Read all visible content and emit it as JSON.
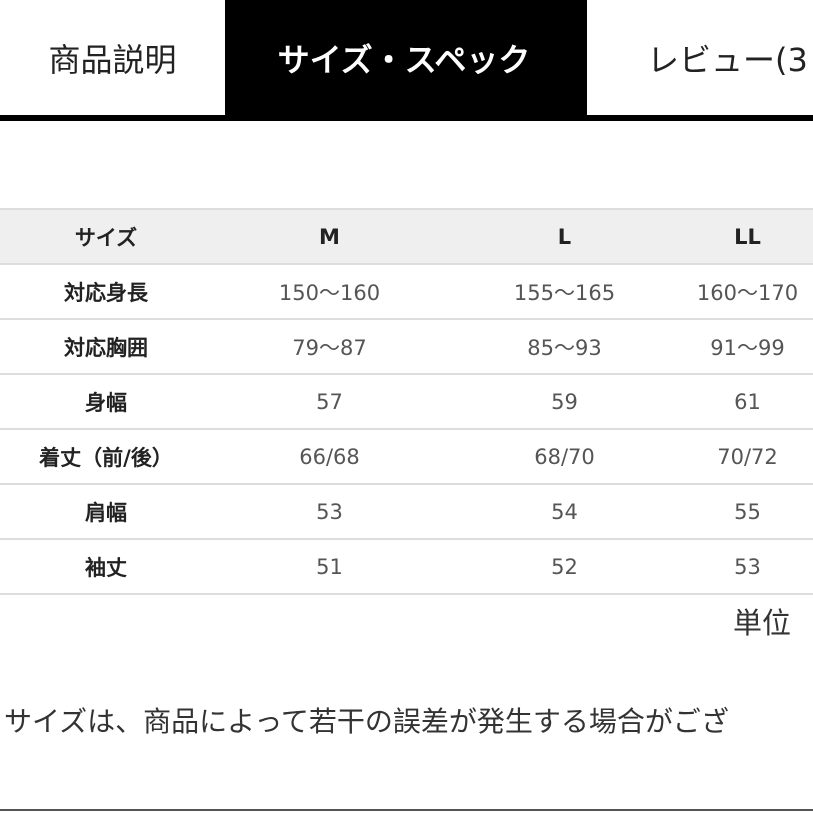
{
  "tabs": [
    {
      "label": "商品説明",
      "active": false
    },
    {
      "label": "サイズ・スペック",
      "active": true
    },
    {
      "label": "レビュー(3",
      "active": false
    }
  ],
  "size_table": {
    "headers": [
      "サイズ",
      "M",
      "L",
      "LL"
    ],
    "rows": [
      [
        "対応身長",
        "150〜160",
        "155〜165",
        "160〜170"
      ],
      [
        "対応胸囲",
        "79〜87",
        "85〜93",
        "91〜99"
      ],
      [
        "身幅",
        "57",
        "59",
        "61"
      ],
      [
        "着丈（前/後）",
        "66/68",
        "68/70",
        "70/72"
      ],
      [
        "肩幅",
        "53",
        "54",
        "55"
      ],
      [
        "袖丈",
        "51",
        "52",
        "53"
      ]
    ]
  },
  "unit_label": "単位",
  "note": "サイズは、商品によって若干の誤差が発生する場合がござ",
  "colors": {
    "active_tab_bg": "#000000",
    "header_bg": "#efefef",
    "border": "#dddddd"
  }
}
